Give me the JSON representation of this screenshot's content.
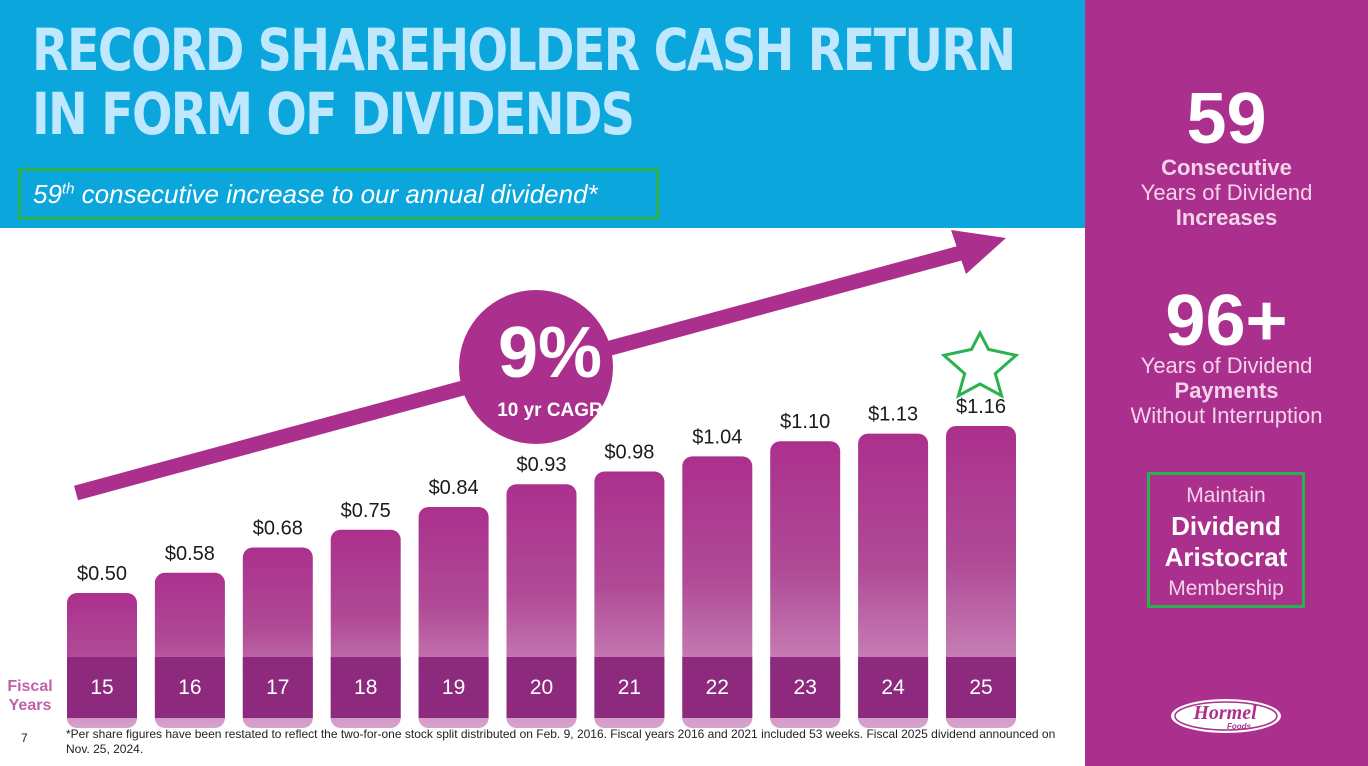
{
  "title_line1": "RECORD SHAREHOLDER CASH RETURN",
  "title_line2": "IN FORM OF DIVIDENDS",
  "subtitle_sup": "th",
  "subtitle_number": "59",
  "subtitle_rest": " consecutive increase to our annual dividend*",
  "sidebar": {
    "stat1_number": "59",
    "stat1_line1": "Consecutive",
    "stat1_line2": "Years of Dividend",
    "stat1_line3": "Increases",
    "stat2_number": "96+",
    "stat2_line1": "Years of Dividend",
    "stat2_line2": "Payments",
    "stat2_line3": "Without Interruption",
    "aristocrat_line1": "Maintain",
    "aristocrat_line2": "Dividend",
    "aristocrat_line3": "Aristocrat",
    "aristocrat_line4": "Membership",
    "logo_text": "Hormel",
    "logo_subtext": "Foods"
  },
  "cagr": {
    "value": "9%",
    "label": "10 yr CAGR"
  },
  "footnote": "*Per share figures have been restated to reflect the two-for-one stock split distributed on Feb. 9, 2016. Fiscal years 2016 and 2021 included 53 weeks. Fiscal 2025 dividend announced on Nov. 25, 2024.",
  "page_number": "7",
  "colors": {
    "header_blue": "#0ba6dc",
    "magenta": "#ab308d",
    "bar_dark": "#8e2a7e",
    "highlight_green": "#2bb24c"
  },
  "chart_data": {
    "type": "bar",
    "xlabel": "Fiscal Years",
    "categories": [
      "15",
      "16",
      "17",
      "18",
      "19",
      "20",
      "21",
      "22",
      "23",
      "24",
      "25"
    ],
    "values": [
      0.5,
      0.58,
      0.68,
      0.75,
      0.84,
      0.93,
      0.98,
      1.04,
      1.1,
      1.13,
      1.16
    ],
    "value_labels": [
      "$0.50",
      "$0.58",
      "$0.68",
      "$0.75",
      "$0.84",
      "$0.93",
      "$0.98",
      "$1.04",
      "$1.10",
      "$1.13",
      "$1.16"
    ],
    "highlight_category": "25",
    "trend_arrow": true
  }
}
